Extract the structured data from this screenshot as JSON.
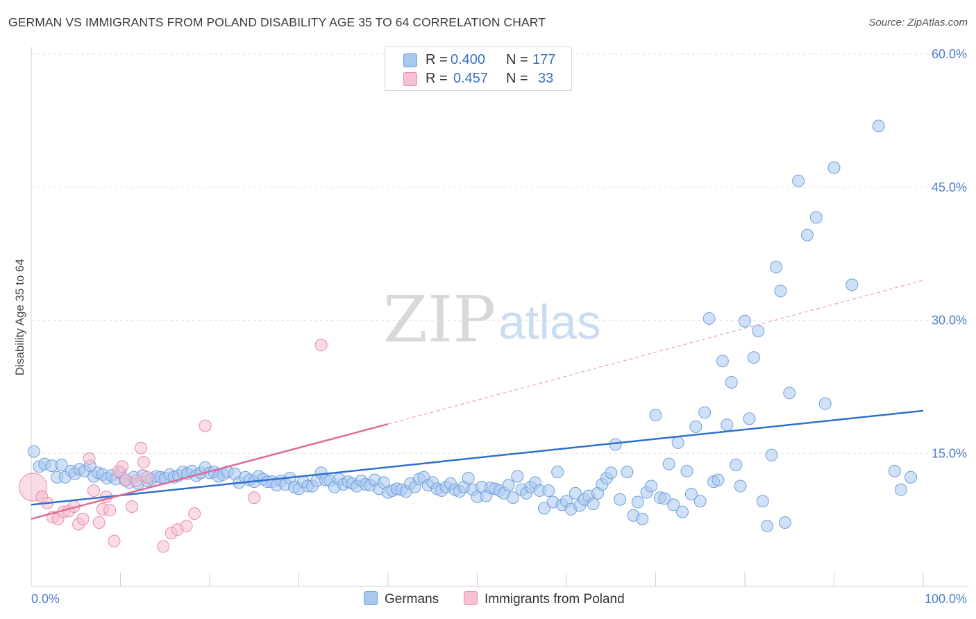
{
  "title": "GERMAN VS IMMIGRANTS FROM POLAND DISABILITY AGE 35 TO 64 CORRELATION CHART",
  "source": "Source: ZipAtlas.com",
  "watermark": {
    "zip": "ZIP",
    "atlas": "atlas"
  },
  "legend": {
    "r_label": "R =",
    "n_label": "N =",
    "rows": [
      {
        "r": "0.400",
        "n": "177",
        "color": "#a9c8f0",
        "border": "#6f9fdc"
      },
      {
        "r": "0.457",
        "n": "33",
        "color": "#f8c1d3",
        "border": "#e889a8"
      }
    ]
  },
  "colors": {
    "blue": "#4a7fd0",
    "blue_fill": "#a9c8f0",
    "pink": "#e06a93",
    "pink_fill": "#f6bfd0",
    "grid": "#dcdcdc",
    "tick_text": "#4a7fd0"
  },
  "chart_data": {
    "type": "scatter",
    "title": "GERMAN VS IMMIGRANTS FROM POLAND DISABILITY AGE 35 TO 64 CORRELATION CHART",
    "xlabel": "",
    "ylabel": "Disability Age 35 to 64",
    "xlim": [
      0,
      100
    ],
    "ylim": [
      0,
      60
    ],
    "x_tick_labels": [
      "0.0%",
      "100.0%"
    ],
    "y_ticks": [
      15,
      30,
      45,
      60
    ],
    "y_tick_labels": [
      "15.0%",
      "30.0%",
      "45.0%",
      "60.0%"
    ],
    "grid": "horizontal dashed",
    "legend_position": "top-center",
    "series": [
      {
        "name": "Germans",
        "color": "#4a7fd0",
        "trend": {
          "x": [
            0,
            100
          ],
          "y": [
            9.2,
            19.8
          ]
        },
        "points": [
          [
            0.3,
            15.2
          ],
          [
            0.9,
            13.5
          ],
          [
            1.5,
            13.8
          ],
          [
            2.3,
            13.6
          ],
          [
            2.9,
            12.3
          ],
          [
            3.4,
            13.7
          ],
          [
            3.8,
            12.3
          ],
          [
            4.5,
            13.0
          ],
          [
            4.9,
            12.7
          ],
          [
            5.4,
            13.2
          ],
          [
            6.0,
            13.0
          ],
          [
            6.6,
            13.6
          ],
          [
            7.0,
            12.4
          ],
          [
            7.5,
            12.8
          ],
          [
            8.0,
            12.6
          ],
          [
            8.5,
            12.2
          ],
          [
            9.0,
            12.5
          ],
          [
            9.5,
            12.1
          ],
          [
            10.0,
            12.8
          ],
          [
            10.5,
            12.0
          ],
          [
            11.0,
            11.7
          ],
          [
            11.5,
            12.3
          ],
          [
            12.0,
            11.6
          ],
          [
            12.5,
            12.5
          ],
          [
            13.0,
            11.9
          ],
          [
            13.5,
            12.1
          ],
          [
            14.0,
            12.4
          ],
          [
            14.5,
            12.3
          ],
          [
            15.0,
            12.2
          ],
          [
            15.5,
            12.6
          ],
          [
            16.0,
            12.3
          ],
          [
            16.5,
            12.5
          ],
          [
            17.0,
            12.9
          ],
          [
            17.5,
            12.7
          ],
          [
            18.0,
            13.0
          ],
          [
            18.5,
            12.5
          ],
          [
            19.0,
            12.8
          ],
          [
            19.5,
            13.4
          ],
          [
            20.0,
            12.8
          ],
          [
            20.5,
            12.9
          ],
          [
            21.0,
            12.4
          ],
          [
            21.5,
            12.6
          ],
          [
            22.0,
            12.9
          ],
          [
            22.8,
            12.7
          ],
          [
            23.3,
            11.7
          ],
          [
            24.0,
            12.3
          ],
          [
            24.5,
            12.0
          ],
          [
            25.0,
            11.8
          ],
          [
            25.5,
            12.4
          ],
          [
            26.0,
            12.1
          ],
          [
            26.5,
            11.8
          ],
          [
            27.0,
            11.8
          ],
          [
            27.5,
            11.4
          ],
          [
            28.0,
            11.9
          ],
          [
            28.5,
            11.5
          ],
          [
            29.0,
            12.2
          ],
          [
            29.5,
            11.2
          ],
          [
            30.0,
            11.0
          ],
          [
            30.5,
            11.8
          ],
          [
            31.0,
            11.3
          ],
          [
            31.5,
            11.3
          ],
          [
            32.0,
            11.9
          ],
          [
            32.5,
            12.8
          ],
          [
            33.0,
            12.0
          ],
          [
            33.5,
            11.9
          ],
          [
            34.0,
            11.2
          ],
          [
            34.5,
            12.1
          ],
          [
            35.0,
            11.5
          ],
          [
            35.5,
            11.8
          ],
          [
            36.0,
            11.6
          ],
          [
            36.5,
            11.3
          ],
          [
            37.0,
            11.9
          ],
          [
            37.5,
            11.5
          ],
          [
            38.0,
            11.4
          ],
          [
            38.5,
            12.0
          ],
          [
            39.0,
            11.0
          ],
          [
            39.5,
            11.7
          ],
          [
            40.0,
            10.6
          ],
          [
            40.5,
            10.8
          ],
          [
            41.0,
            11.0
          ],
          [
            41.5,
            10.9
          ],
          [
            42.0,
            10.7
          ],
          [
            42.5,
            11.6
          ],
          [
            43.0,
            11.2
          ],
          [
            43.5,
            12.1
          ],
          [
            44.0,
            12.3
          ],
          [
            44.5,
            11.4
          ],
          [
            45.0,
            11.7
          ],
          [
            45.5,
            11.0
          ],
          [
            46.0,
            10.8
          ],
          [
            46.5,
            11.2
          ],
          [
            47.0,
            11.6
          ],
          [
            47.5,
            10.9
          ],
          [
            48.0,
            10.7
          ],
          [
            48.5,
            11.2
          ],
          [
            49.0,
            12.2
          ],
          [
            49.5,
            10.9
          ],
          [
            50.0,
            10.1
          ],
          [
            50.5,
            11.2
          ],
          [
            51.0,
            10.2
          ],
          [
            51.5,
            11.1
          ],
          [
            52.0,
            11.0
          ],
          [
            52.5,
            10.8
          ],
          [
            53.0,
            10.5
          ],
          [
            53.5,
            11.4
          ],
          [
            54.0,
            10.0
          ],
          [
            54.5,
            12.4
          ],
          [
            55.0,
            10.9
          ],
          [
            55.5,
            10.5
          ],
          [
            56.0,
            11.2
          ],
          [
            56.5,
            11.7
          ],
          [
            57.0,
            10.8
          ],
          [
            57.5,
            8.8
          ],
          [
            58.0,
            10.8
          ],
          [
            58.5,
            9.5
          ],
          [
            59.0,
            12.9
          ],
          [
            59.5,
            9.2
          ],
          [
            60.0,
            9.6
          ],
          [
            60.5,
            8.7
          ],
          [
            61.0,
            10.5
          ],
          [
            61.5,
            9.1
          ],
          [
            62.0,
            9.8
          ],
          [
            62.5,
            10.2
          ],
          [
            63.0,
            9.3
          ],
          [
            63.5,
            10.5
          ],
          [
            64.0,
            11.5
          ],
          [
            64.5,
            12.2
          ],
          [
            65.0,
            12.8
          ],
          [
            65.5,
            16.0
          ],
          [
            66.0,
            9.8
          ],
          [
            66.8,
            12.9
          ],
          [
            67.5,
            8.0
          ],
          [
            68.0,
            9.5
          ],
          [
            68.5,
            7.6
          ],
          [
            69.0,
            10.6
          ],
          [
            69.5,
            11.3
          ],
          [
            70.0,
            19.3
          ],
          [
            70.5,
            10.0
          ],
          [
            71.0,
            9.9
          ],
          [
            71.5,
            13.8
          ],
          [
            72.0,
            9.2
          ],
          [
            72.5,
            16.2
          ],
          [
            73.0,
            8.4
          ],
          [
            73.5,
            13.0
          ],
          [
            74.0,
            10.4
          ],
          [
            74.5,
            18.0
          ],
          [
            75.0,
            9.6
          ],
          [
            75.5,
            19.6
          ],
          [
            76.0,
            30.2
          ],
          [
            76.5,
            11.8
          ],
          [
            77.0,
            12.0
          ],
          [
            77.5,
            25.4
          ],
          [
            78.0,
            18.2
          ],
          [
            78.5,
            23.0
          ],
          [
            79.0,
            13.7
          ],
          [
            79.5,
            11.3
          ],
          [
            80.0,
            29.9
          ],
          [
            80.5,
            18.9
          ],
          [
            81.0,
            25.8
          ],
          [
            81.5,
            28.8
          ],
          [
            82.0,
            9.6
          ],
          [
            82.5,
            6.8
          ],
          [
            83.0,
            14.8
          ],
          [
            83.5,
            36.0
          ],
          [
            84.0,
            33.3
          ],
          [
            84.5,
            7.2
          ],
          [
            85.0,
            21.8
          ],
          [
            86.0,
            45.7
          ],
          [
            87.0,
            39.6
          ],
          [
            88.0,
            41.6
          ],
          [
            89.0,
            20.6
          ],
          [
            90.0,
            47.2
          ],
          [
            92.0,
            34.0
          ],
          [
            95.0,
            51.9
          ],
          [
            96.8,
            13.0
          ],
          [
            97.5,
            10.9
          ],
          [
            98.6,
            12.3
          ]
        ]
      },
      {
        "name": "Immigrants from Poland",
        "color": "#e06a93",
        "trend": {
          "x": [
            0,
            40
          ],
          "y": [
            7.6,
            18.3
          ]
        },
        "trend_extension": {
          "x": [
            40,
            100
          ],
          "y": [
            18.3,
            34.5
          ]
        },
        "points": [
          [
            0.2,
            11.2
          ],
          [
            1.2,
            10.1
          ],
          [
            1.8,
            9.4
          ],
          [
            2.4,
            7.8
          ],
          [
            3.0,
            7.6
          ],
          [
            3.6,
            8.4
          ],
          [
            4.2,
            8.5
          ],
          [
            4.8,
            9.0
          ],
          [
            5.3,
            7.0
          ],
          [
            5.8,
            7.6
          ],
          [
            6.5,
            14.4
          ],
          [
            7.0,
            10.8
          ],
          [
            7.6,
            7.2
          ],
          [
            8.0,
            8.7
          ],
          [
            8.4,
            10.1
          ],
          [
            8.8,
            8.6
          ],
          [
            9.3,
            5.1
          ],
          [
            9.8,
            13.0
          ],
          [
            10.2,
            13.5
          ],
          [
            10.6,
            12.0
          ],
          [
            11.3,
            9.0
          ],
          [
            11.8,
            11.9
          ],
          [
            12.3,
            15.6
          ],
          [
            12.6,
            14.0
          ],
          [
            13.0,
            12.3
          ],
          [
            14.8,
            4.5
          ],
          [
            15.7,
            6.0
          ],
          [
            16.4,
            6.4
          ],
          [
            17.4,
            6.8
          ],
          [
            18.3,
            8.2
          ],
          [
            19.5,
            18.1
          ],
          [
            25.0,
            10.0
          ],
          [
            32.5,
            27.2
          ]
        ]
      }
    ]
  }
}
